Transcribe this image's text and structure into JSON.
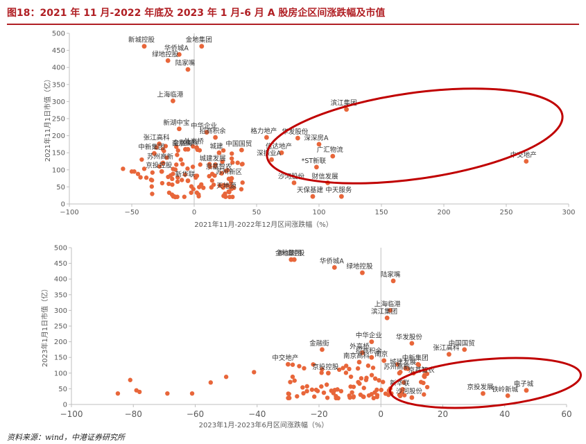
{
  "title": "图18：2021 年 11 月-2022 年底及 2023 年 1 月-6 月 A 股房企区间涨跌幅及市值",
  "source": "资料来源：wind，中港证券研究所",
  "colors": {
    "title": "#b01e23",
    "point": "#e8663a",
    "ellipse": "#c00000",
    "axis": "#bfbfbf",
    "text": "#595959"
  },
  "chart_data": [
    {
      "type": "scatter",
      "xlabel": "2021年11月-2022年12月区间涨跌幅（%）",
      "ylabel": "2021年11月1日市值（亿）",
      "xlim": [
        -100,
        300
      ],
      "ylim": [
        0,
        500
      ],
      "xticks": [
        -100,
        -50,
        0,
        50,
        100,
        150,
        200,
        250,
        300
      ],
      "yticks": [
        0,
        50,
        100,
        150,
        200,
        250,
        300,
        350,
        400,
        450,
        500
      ],
      "grid": false,
      "labeled_points": [
        {
          "label": "新城控股",
          "x": -40,
          "y": 462
        },
        {
          "label": "金地集团",
          "x": 6,
          "y": 462
        },
        {
          "label": "华侨城A",
          "x": -12,
          "y": 438
        },
        {
          "label": "绿地控股",
          "x": -21,
          "y": 420
        },
        {
          "label": "陆家嘴",
          "x": -5,
          "y": 394
        },
        {
          "label": "上海临港",
          "x": -17,
          "y": 302
        },
        {
          "label": "新湖中宝",
          "x": -12,
          "y": 220
        },
        {
          "label": "中华企业",
          "x": 10,
          "y": 210
        },
        {
          "label": "张江高科",
          "x": -28,
          "y": 176
        },
        {
          "label": "金融街",
          "x": -7,
          "y": 160
        },
        {
          "label": "招商积余",
          "x": 17,
          "y": 195
        },
        {
          "label": "外高桥",
          "x": 2,
          "y": 165
        },
        {
          "label": "南京高科",
          "x": -5,
          "y": 160
        },
        {
          "label": "城建",
          "x": 20,
          "y": 150
        },
        {
          "label": "中国国贸",
          "x": 38,
          "y": 158
        },
        {
          "label": "中新集团",
          "x": -32,
          "y": 148
        },
        {
          "label": "城建发展",
          "x": 17,
          "y": 115
        },
        {
          "label": "苏州高新",
          "x": -25,
          "y": 120
        },
        {
          "label": "京投控股",
          "x": -26,
          "y": 95
        },
        {
          "label": "京基智农",
          "x": 22,
          "y": 90
        },
        {
          "label": "苏州新区",
          "x": 30,
          "y": 75
        },
        {
          "label": "新华联",
          "x": -5,
          "y": 68
        },
        {
          "label": "天地源",
          "x": 28,
          "y": 35
        },
        {
          "label": "格力地产",
          "x": 58,
          "y": 195
        },
        {
          "label": "华发股份",
          "x": 83,
          "y": 193
        },
        {
          "label": "深深房A",
          "x": 100,
          "y": 175
        },
        {
          "label": "信达地产",
          "x": 70,
          "y": 150
        },
        {
          "label": "深振业A",
          "x": 62,
          "y": 130
        },
        {
          "label": "广汇物流",
          "x": 111,
          "y": 140
        },
        {
          "label": "滨江集团",
          "x": 122,
          "y": 277
        },
        {
          "label": "*ST新联",
          "x": 98,
          "y": 108
        },
        {
          "label": "沙河股份",
          "x": 80,
          "y": 62
        },
        {
          "label": "财信发展",
          "x": 107,
          "y": 62
        },
        {
          "label": "天保基建",
          "x": 95,
          "y": 22
        },
        {
          "label": "中天服务",
          "x": 118,
          "y": 22
        },
        {
          "label": "中交地产",
          "x": 266,
          "y": 125
        }
      ],
      "annotation": "ellipse highlighting top performers"
    },
    {
      "type": "scatter",
      "xlabel": "2023年1月-2023年6月区间涨跌幅（%）",
      "ylabel": "2023年1月1日市值（亿）",
      "xlim": [
        -100,
        60
      ],
      "ylim": [
        0,
        500
      ],
      "xticks": [
        -100,
        -80,
        -60,
        -40,
        -20,
        0,
        20,
        40,
        60
      ],
      "yticks": [
        0,
        50,
        100,
        150,
        200,
        250,
        300,
        350,
        400,
        450,
        500
      ],
      "grid": false,
      "labeled_points": [
        {
          "label": "金地集团",
          "x": -29,
          "y": 462
        },
        {
          "label": "华侨城A",
          "x": -15,
          "y": 437
        },
        {
          "label": "绿地控股",
          "x": -6,
          "y": 420
        },
        {
          "label": "新城控股",
          "x": -28,
          "y": 462
        },
        {
          "label": "陆家嘴",
          "x": 4,
          "y": 394
        },
        {
          "label": "上海临港",
          "x": 3,
          "y": 300
        },
        {
          "label": "滨江集团",
          "x": 2,
          "y": 276
        },
        {
          "label": "中华企业",
          "x": -3,
          "y": 200
        },
        {
          "label": "华发股份",
          "x": 10,
          "y": 195
        },
        {
          "label": "张江高科",
          "x": 22,
          "y": 160
        },
        {
          "label": "中国国贸",
          "x": 27,
          "y": 175
        },
        {
          "label": "金融街",
          "x": -19,
          "y": 175
        },
        {
          "label": "外高桥",
          "x": -6,
          "y": 165
        },
        {
          "label": "招商积余",
          "x": -3,
          "y": 150
        },
        {
          "label": "南京高科",
          "x": -7,
          "y": 135
        },
        {
          "label": "南京",
          "x": 1,
          "y": 140
        },
        {
          "label": "城建发展",
          "x": 8,
          "y": 115
        },
        {
          "label": "中新集团",
          "x": 12,
          "y": 128
        },
        {
          "label": "中交地产",
          "x": -30,
          "y": 128
        },
        {
          "label": "苏州高新",
          "x": 6,
          "y": 100
        },
        {
          "label": "京基智农",
          "x": 14,
          "y": 90
        },
        {
          "label": "京投控股",
          "x": -17,
          "y": 100
        },
        {
          "label": "京投发展",
          "x": 33,
          "y": 35
        },
        {
          "label": "电子城",
          "x": 47,
          "y": 45
        },
        {
          "label": "铁岭新城",
          "x": 41,
          "y": 28
        },
        {
          "label": "新华联",
          "x": 7,
          "y": 48
        },
        {
          "label": "沙河股份",
          "x": 10,
          "y": 22
        }
      ],
      "annotation": "ellipse highlighting top performers"
    }
  ]
}
